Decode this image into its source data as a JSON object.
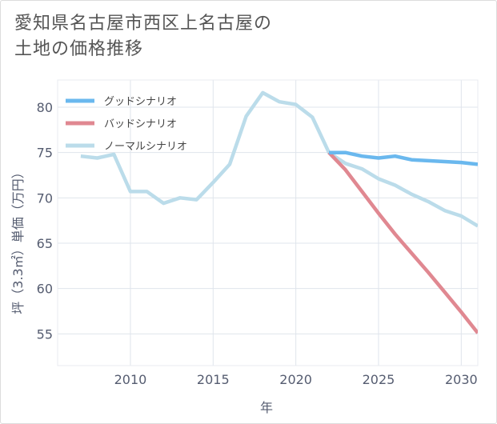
{
  "title_lines": [
    "愛知県名古屋市西区上名古屋の",
    "土地の価格推移"
  ],
  "chart_data": {
    "type": "line",
    "title": "愛知県名古屋市西区上名古屋の土地の価格推移",
    "xlabel": "年",
    "ylabel": "坪（3.3㎡）単価（万円）",
    "xlim": [
      2005.6,
      2031.0
    ],
    "ylim": [
      51.5,
      83.0
    ],
    "xticks": [
      2010,
      2015,
      2020,
      2025,
      2030
    ],
    "yticks": [
      55,
      60,
      65,
      70,
      75,
      80
    ],
    "grid": true,
    "legend_position": "top-left",
    "series": [
      {
        "name": "グッドシナリオ",
        "color": "#6ab8ee",
        "x": [
          2022,
          2023,
          2024,
          2025,
          2026,
          2027,
          2028,
          2029,
          2030,
          2031
        ],
        "y": [
          75.0,
          75.0,
          74.6,
          74.4,
          74.6,
          74.2,
          74.1,
          74.0,
          73.9,
          73.7
        ]
      },
      {
        "name": "バッドシナリオ",
        "color": "#e08891",
        "x": [
          2022,
          2023,
          2024,
          2025,
          2026,
          2027,
          2028,
          2029,
          2030,
          2031
        ],
        "y": [
          75.0,
          73.1,
          70.7,
          68.3,
          66.0,
          63.9,
          61.8,
          59.6,
          57.4,
          55.1
        ]
      },
      {
        "name": "ノーマルシナリオ",
        "color": "#bbdcea",
        "x": [
          2007,
          2008,
          2009,
          2010,
          2011,
          2012,
          2013,
          2014,
          2015,
          2016,
          2017,
          2018,
          2019,
          2020,
          2021,
          2022,
          2023,
          2024,
          2025,
          2026,
          2027,
          2028,
          2029,
          2030,
          2031
        ],
        "y": [
          74.6,
          74.4,
          74.8,
          70.7,
          70.7,
          69.4,
          70.0,
          69.8,
          71.7,
          73.7,
          79.0,
          81.6,
          80.6,
          80.3,
          78.9,
          75.0,
          73.8,
          73.2,
          72.1,
          71.4,
          70.4,
          69.6,
          68.6,
          68.0,
          66.9
        ]
      }
    ]
  }
}
